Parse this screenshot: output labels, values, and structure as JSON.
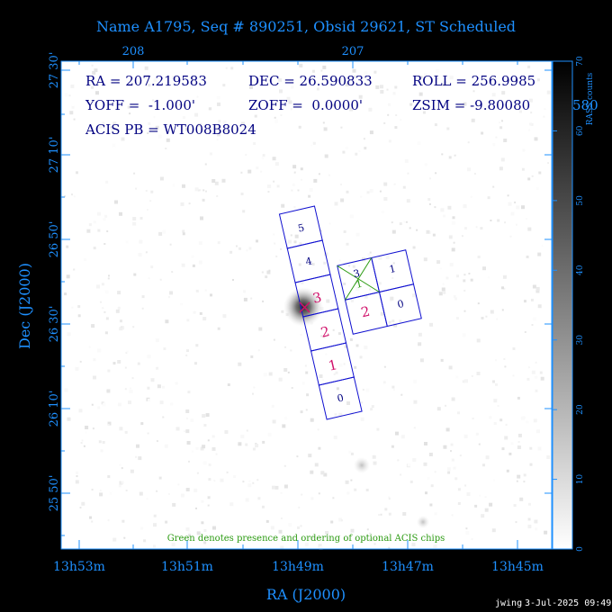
{
  "title": "Name A1795, Seq # 890251, Obsid 29621, ST Scheduled",
  "top_axis_labels": [
    "208",
    "207"
  ],
  "x_axis": {
    "label": "RA (J2000)",
    "ticks": [
      "13h53m",
      "13h51m",
      "13h49m",
      "13h47m",
      "13h45m"
    ]
  },
  "y_axis": {
    "label": "Dec (J2000)",
    "ticks": [
      "27 30'",
      "27 10'",
      "26 50'",
      "26 30'",
      "26 10'",
      "25 50'"
    ]
  },
  "info": {
    "ra": "RA = 207.219583",
    "dec": "DEC = 26.590833",
    "roll": "ROLL = 256.9985",
    "yoff": "YOFF =  -1.000'",
    "zoff": "ZOFF =  0.0000'",
    "zsim": "ZSIM = -9.80080",
    "acis_pb": "ACIS PB = WT008B8024"
  },
  "note": "Green denotes presence and ordering of optional ACIS chips",
  "colorbar": {
    "label": "RASS counts",
    "ticks": [
      "0",
      "10",
      "20",
      "30",
      "40",
      "50",
      "60",
      "70"
    ],
    "overflow_label": "580"
  },
  "chips": {
    "s_array": [
      "5",
      "4",
      "3",
      "2",
      "1",
      "0"
    ],
    "i_array": [
      "3",
      "1",
      "2",
      "0"
    ],
    "optional_i": "1"
  },
  "footer": {
    "user": "jwing",
    "timestamp": "3-Jul-2025 09:49"
  },
  "colors": {
    "axis": "#1e90ff",
    "chip_outline": "#1010d0",
    "chip_label": "#000080",
    "highlight": "#d0106a",
    "optional": "#2a9a10",
    "background": "#000000",
    "plot_bg": "#ffffff"
  }
}
